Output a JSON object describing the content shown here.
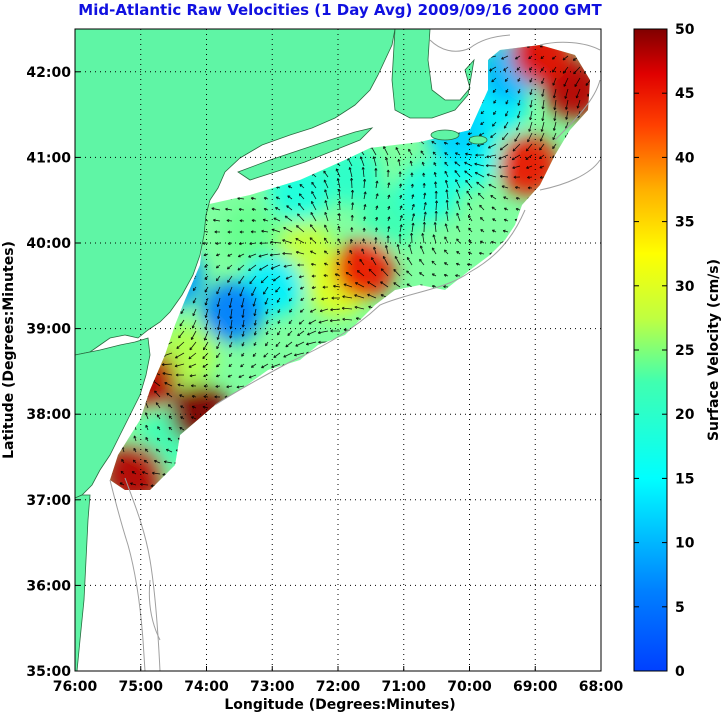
{
  "title": "Mid-Atlantic Raw Velocities (1 Day Avg) 2009/09/16 2000 GMT",
  "x_axis_label": "Longitude (Degrees:Minutes)",
  "y_axis_label": "Latitude (Degrees:Minutes)",
  "x_ticks": [
    "76:00",
    "75:00",
    "74:00",
    "73:00",
    "72:00",
    "71:00",
    "70:00",
    "69:00",
    "68:00"
  ],
  "y_ticks": [
    "42:00",
    "41:00",
    "40:00",
    "39:00",
    "38:00",
    "37:00",
    "36:00",
    "35:00"
  ],
  "colorbar": {
    "label": "Surface Velocity (cm/s)",
    "ticks": [
      "50",
      "45",
      "40",
      "35",
      "30",
      "25",
      "20",
      "15",
      "10",
      "5",
      "0"
    ],
    "min": 0,
    "max": 50,
    "colormap": "jet"
  },
  "colors": {
    "title": "#1010e0",
    "land": "#5ff5a5",
    "ocean": "#ffffff",
    "bathymetry": "#a0a0a0"
  },
  "chart_data": {
    "type": "heatmap",
    "title": "Mid-Atlantic Raw Velocities (1 Day Avg) 2009/09/16 2000 GMT",
    "xlabel": "Longitude (Degrees:Minutes)",
    "ylabel": "Latitude (Degrees:Minutes)",
    "xlim": [
      "76:00",
      "68:00"
    ],
    "ylim": [
      "35:00",
      "42:30"
    ],
    "grid": true,
    "value_range": [
      0,
      50
    ],
    "unit": "cm/s",
    "high_velocity_regions": [
      {
        "lon": -74.1,
        "lat": 38.0,
        "velocity": 50
      },
      {
        "lon": -74.9,
        "lat": 38.4,
        "velocity": 48
      },
      {
        "lon": -75.1,
        "lat": 37.3,
        "velocity": 48
      },
      {
        "lon": -71.6,
        "lat": 39.7,
        "velocity": 45
      },
      {
        "lon": -69.1,
        "lat": 40.9,
        "velocity": 45
      },
      {
        "lon": -68.4,
        "lat": 41.8,
        "velocity": 48
      },
      {
        "lon": -68.9,
        "lat": 42.2,
        "velocity": 46
      }
    ],
    "low_velocity_regions": [
      {
        "lon": -74.5,
        "lat": 39.6,
        "velocity": 8
      },
      {
        "lon": -73.6,
        "lat": 39.2,
        "velocity": 6
      },
      {
        "lon": -70.2,
        "lat": 41.3,
        "velocity": 12
      },
      {
        "lon": -69.4,
        "lat": 42.0,
        "velocity": 10
      }
    ]
  }
}
